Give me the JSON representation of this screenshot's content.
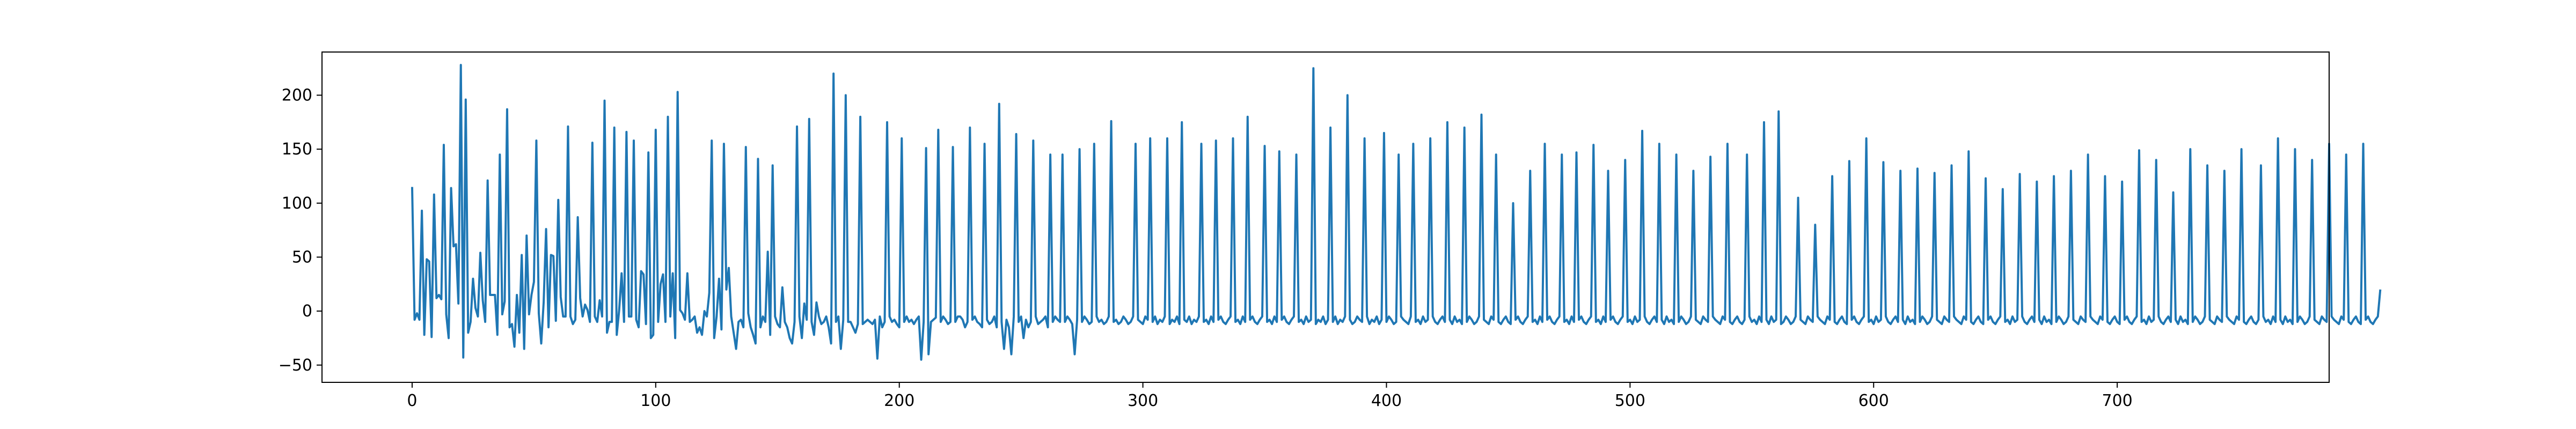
{
  "chart_data": {
    "type": "line",
    "title": "",
    "xlabel": "",
    "ylabel": "",
    "xlim": [
      -37,
      787
    ],
    "ylim": [
      -66,
      240
    ],
    "grid": false,
    "legend": "none",
    "x_ticks": [
      0,
      100,
      200,
      300,
      400,
      500,
      600,
      700
    ],
    "y_ticks": [
      -50,
      0,
      50,
      100,
      150,
      200
    ],
    "series_color": "#1f77b4",
    "series": [
      {
        "x_start": 0,
        "x_step": 1,
        "values": [
          115,
          -8,
          -2,
          -8,
          93,
          -22,
          48,
          46,
          -24,
          108,
          12,
          15,
          11,
          154,
          -3,
          -25,
          114,
          60,
          62,
          7,
          228,
          -43,
          196,
          -20,
          -10,
          30,
          3,
          -5,
          54,
          10,
          -10,
          121,
          15,
          15,
          15,
          -22,
          145,
          -3,
          9,
          187,
          -15,
          -12,
          -33,
          15,
          -20,
          52,
          -35,
          70,
          -3,
          15,
          27,
          158,
          -2,
          -30,
          8,
          76,
          -15,
          52,
          51,
          -9,
          103,
          13,
          -5,
          -5,
          171,
          -5,
          -12,
          -8,
          87,
          12,
          -5,
          6,
          1,
          -10,
          156,
          -5,
          -10,
          10,
          -5,
          195,
          -20,
          -10,
          -10,
          170,
          -22,
          1,
          35,
          -10,
          166,
          -5,
          -5,
          158,
          -8,
          -15,
          37,
          34,
          -12,
          147,
          -25,
          -22,
          168,
          -10,
          25,
          34,
          -10,
          180,
          -5,
          35,
          -25,
          203,
          1,
          -2,
          -8,
          35,
          -10,
          -8,
          -5,
          -20,
          -15,
          -22,
          0,
          -5,
          17,
          158,
          -25,
          -5,
          30,
          -17,
          155,
          20,
          40,
          -5,
          -20,
          -35,
          -10,
          -8,
          -15,
          152,
          -2,
          -15,
          -22,
          -30,
          141,
          -15,
          -5,
          -10,
          55,
          -22,
          135,
          -5,
          -12,
          -15,
          22,
          -10,
          -15,
          -25,
          -30,
          -10,
          171,
          -5,
          -25,
          7,
          -8,
          178,
          -10,
          -22,
          8,
          -5,
          -12,
          -10,
          -5,
          -15,
          -30,
          220,
          -10,
          -5,
          -35,
          -8,
          200,
          -10,
          -10,
          -15,
          -20,
          -12,
          180,
          -12,
          -10,
          -8,
          -10,
          -12,
          -8,
          -44,
          -5,
          -15,
          -10,
          175,
          -5,
          -10,
          -8,
          -12,
          -15,
          160,
          -10,
          -5,
          -10,
          -8,
          -12,
          -8,
          -5,
          -45,
          -10,
          151,
          -40,
          -10,
          -8,
          -6,
          168,
          -10,
          -5,
          -8,
          -12,
          -10,
          152,
          -10,
          -5,
          -5,
          -8,
          -15,
          -10,
          170,
          -8,
          -5,
          -10,
          -12,
          -15,
          155,
          -8,
          -12,
          -10,
          -5,
          -15,
          192,
          -10,
          -35,
          -8,
          -15,
          -40,
          -5,
          164,
          -10,
          -5,
          -25,
          -8,
          -15,
          -10,
          158,
          -5,
          -12,
          -10,
          -8,
          -5,
          -15,
          145,
          -10,
          -5,
          -8,
          -10,
          145,
          -10,
          -5,
          -8,
          -12,
          -40,
          -8,
          150,
          -10,
          -5,
          -8,
          -12,
          -10,
          155,
          -5,
          -10,
          -8,
          -12,
          -10,
          -5,
          176,
          -10,
          -8,
          -12,
          -10,
          -5,
          -8,
          -12,
          -10,
          -5,
          155,
          -8,
          -10,
          -12,
          -5,
          -8,
          160,
          -10,
          -5,
          -12,
          -8,
          -10,
          -5,
          160,
          -12,
          -8,
          -10,
          -5,
          -12,
          175,
          -8,
          -10,
          -5,
          -12,
          -8,
          -10,
          -5,
          155,
          -10,
          -8,
          -12,
          -5,
          -10,
          158,
          -8,
          -5,
          -10,
          -12,
          -8,
          -5,
          160,
          -10,
          -8,
          -12,
          -5,
          -10,
          180,
          -8,
          -5,
          -10,
          -12,
          -8,
          -5,
          153,
          -10,
          -8,
          -12,
          -5,
          -10,
          148,
          -8,
          -5,
          -10,
          -12,
          -8,
          -5,
          145,
          -10,
          -8,
          -12,
          -5,
          -10,
          -8,
          225,
          -12,
          -8,
          -10,
          -5,
          -12,
          -8,
          170,
          -10,
          -5,
          -12,
          -8,
          -10,
          -5,
          200,
          -8,
          -12,
          -10,
          -5,
          -8,
          -10,
          160,
          -5,
          -12,
          -8,
          -10,
          -5,
          -12,
          -8,
          165,
          -10,
          -5,
          -8,
          -12,
          -10,
          145,
          -5,
          -8,
          -10,
          -12,
          -5,
          155,
          -10,
          -8,
          -12,
          -5,
          -10,
          -8,
          160,
          -5,
          -10,
          -12,
          -8,
          -5,
          -10,
          175,
          -8,
          -12,
          -5,
          -10,
          -8,
          -12,
          170,
          -10,
          -5,
          -8,
          -12,
          -10,
          -5,
          182,
          -8,
          -10,
          -12,
          -5,
          -8,
          145,
          -10,
          -12,
          -8,
          -5,
          -10,
          -12,
          100,
          -8,
          -5,
          -10,
          -12,
          -8,
          -5,
          130,
          -10,
          -8,
          -12,
          -5,
          -10,
          155,
          -8,
          -5,
          -10,
          -12,
          -8,
          -5,
          145,
          -10,
          -8,
          -12,
          -5,
          -10,
          147,
          -8,
          -5,
          -10,
          -12,
          -8,
          -5,
          154,
          -10,
          -8,
          -12,
          -5,
          -10,
          130,
          -8,
          -5,
          -10,
          -12,
          -8,
          -5,
          140,
          -10,
          -8,
          -12,
          -5,
          -10,
          -8,
          167,
          -5,
          -10,
          -12,
          -8,
          -5,
          -10,
          155,
          -8,
          -12,
          -5,
          -10,
          -8,
          -12,
          145,
          -10,
          -5,
          -8,
          -12,
          -10,
          -5,
          130,
          -8,
          -10,
          -12,
          -5,
          -8,
          -10,
          143,
          -5,
          -8,
          -10,
          -12,
          -5,
          -8,
          155,
          -10,
          -12,
          -8,
          -5,
          -10,
          -12,
          -8,
          145,
          -5,
          -10,
          -8,
          -12,
          -5,
          -10,
          175,
          -8,
          -12,
          -5,
          -10,
          -8,
          185,
          -12,
          -10,
          -5,
          -8,
          -12,
          -10,
          -5,
          105,
          -8,
          -10,
          -12,
          -5,
          -8,
          -10,
          80,
          -5,
          -8,
          -10,
          -12,
          -5,
          -8,
          125,
          -10,
          -12,
          -8,
          -5,
          -10,
          -12,
          139,
          -8,
          -5,
          -10,
          -12,
          -8,
          -5,
          160,
          -10,
          -8,
          -12,
          -5,
          -10,
          -8,
          138,
          -5,
          -10,
          -12,
          -8,
          -5,
          -10,
          130,
          -8,
          -12,
          -5,
          -10,
          -8,
          -12,
          132,
          -10,
          -5,
          -8,
          -12,
          -10,
          -5,
          128,
          -8,
          -10,
          -12,
          -5,
          -8,
          -10,
          135,
          -5,
          -8,
          -10,
          -12,
          -5,
          -8,
          148,
          -10,
          -12,
          -8,
          -5,
          -10,
          -12,
          123,
          -8,
          -5,
          -10,
          -12,
          -8,
          -5,
          113,
          -10,
          -8,
          -12,
          -5,
          -10,
          -8,
          127,
          -5,
          -10,
          -12,
          -8,
          -5,
          -10,
          120,
          -8,
          -12,
          -5,
          -10,
          -8,
          -12,
          125,
          -10,
          -5,
          -8,
          -12,
          -10,
          -5,
          130,
          -8,
          -10,
          -12,
          -5,
          -8,
          -10,
          145,
          -5,
          -8,
          -10,
          -12,
          -5,
          -8,
          125,
          -10,
          -12,
          -8,
          -5,
          -10,
          -12,
          120,
          -8,
          -5,
          -10,
          -12,
          -8,
          -5,
          149,
          -10,
          -8,
          -12,
          -5,
          -10,
          -8,
          140,
          -5,
          -10,
          -12,
          -8,
          -5,
          -10,
          110,
          -8,
          -12,
          -5,
          -10,
          -8,
          -12,
          150,
          -10,
          -5,
          -8,
          -12,
          -10,
          -5,
          135,
          -8,
          -10,
          -12,
          -5,
          -8,
          -10,
          130,
          -5,
          -8,
          -10,
          -12,
          -5,
          -8,
          150,
          -10,
          -12,
          -8,
          -5,
          -10,
          -12,
          -8,
          135,
          -5,
          -10,
          -8,
          -12,
          -5,
          -10,
          160,
          -8,
          -12,
          -5,
          -10,
          -8,
          -12,
          150,
          -10,
          -5,
          -8,
          -12,
          -10,
          -5,
          140,
          -8,
          -10,
          -12,
          -5,
          -8,
          -10,
          155,
          -5,
          -8,
          -10,
          -12,
          -5,
          -8,
          145,
          -10,
          -12,
          -8,
          -5,
          -10,
          -12,
          155,
          -8,
          -5,
          -10,
          -12,
          -8,
          -5,
          20
        ]
      }
    ]
  }
}
